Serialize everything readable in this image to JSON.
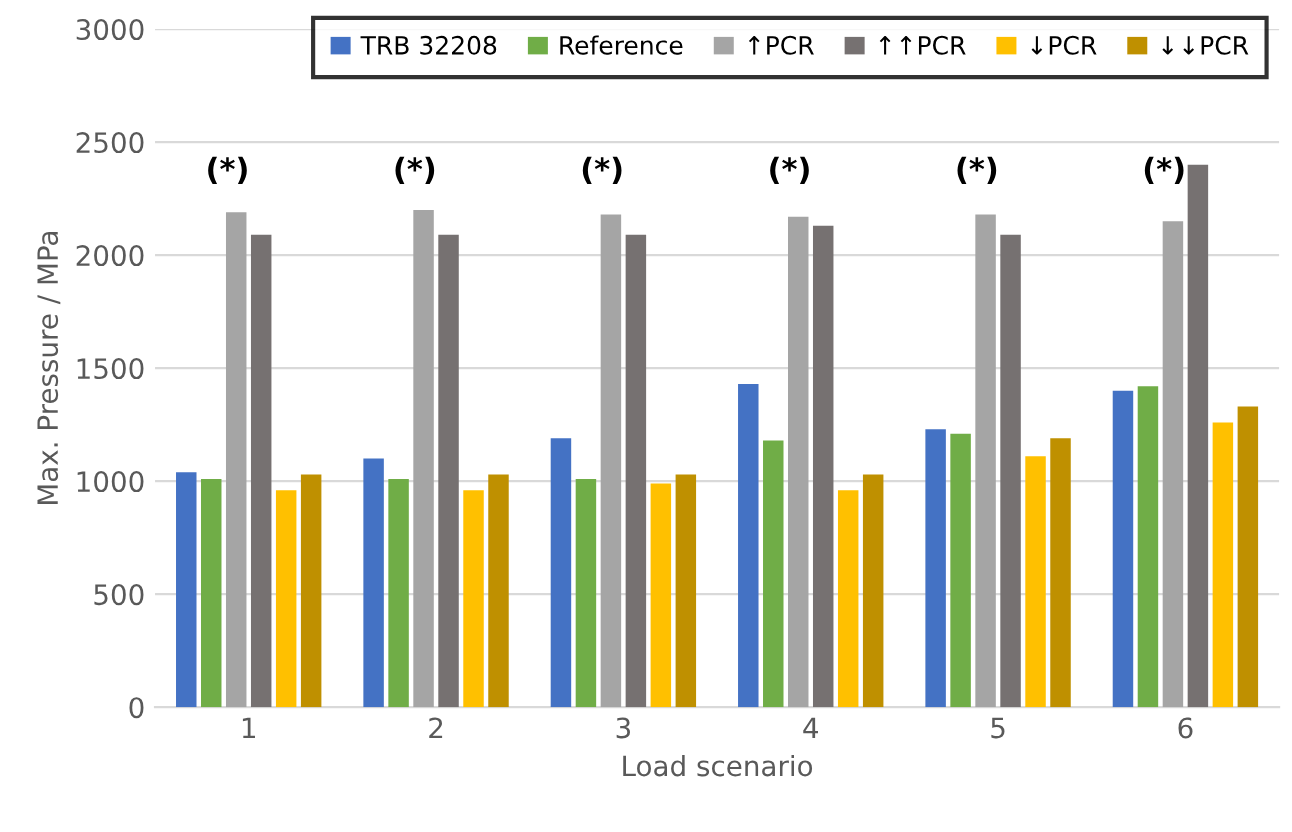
{
  "chart_data": {
    "type": "bar",
    "xlabel": "Load scenario",
    "ylabel": "Max. Pressure / MPa",
    "categories": [
      "1",
      "2",
      "3",
      "4",
      "5",
      "6"
    ],
    "series": [
      {
        "name": "TRB 32208",
        "color": "#4472c4",
        "values": [
          1040,
          1100,
          1190,
          1430,
          1230,
          1400
        ]
      },
      {
        "name": "Reference",
        "color": "#70ad47",
        "values": [
          1010,
          1010,
          1010,
          1180,
          1210,
          1420
        ]
      },
      {
        "name": "↑PCR",
        "color": "#a5a5a5",
        "values": [
          2190,
          2200,
          2180,
          2170,
          2180,
          2150
        ]
      },
      {
        "name": "↑↑PCR",
        "color": "#767171",
        "values": [
          2090,
          2090,
          2090,
          2130,
          2090,
          2400
        ]
      },
      {
        "name": "↓PCR",
        "color": "#ffc000",
        "values": [
          960,
          960,
          990,
          960,
          1110,
          1260
        ]
      },
      {
        "name": "↓↓PCR",
        "color": "#bf9000",
        "values": [
          1030,
          1030,
          1030,
          1030,
          1190,
          1330
        ]
      }
    ],
    "annotations": [
      "(*)",
      "(*)",
      "(*)",
      "(*)",
      "(*)",
      "(*)"
    ],
    "ylim": [
      0,
      3000
    ],
    "yticks": [
      0,
      500,
      1000,
      1500,
      2000,
      2500,
      3000
    ],
    "grid": "y",
    "legend": "top right"
  }
}
